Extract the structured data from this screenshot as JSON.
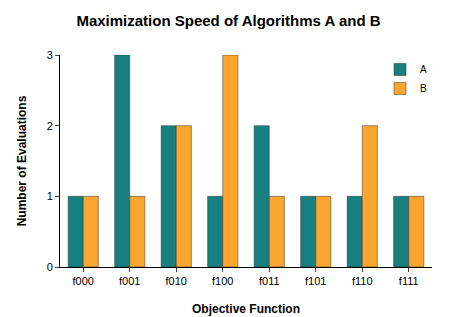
{
  "chart_data": {
    "type": "bar",
    "title": "Maximization Speed of Algorithms A and B",
    "x_label": "Objective Function",
    "y_label": "Number of Evaluations",
    "categories": [
      "f000",
      "f001",
      "f010",
      "f100",
      "f011",
      "f101",
      "f110",
      "f111"
    ],
    "series": [
      {
        "name": "A",
        "color": "#168080",
        "values": [
          1,
          3,
          2,
          1,
          2,
          1,
          1,
          1
        ]
      },
      {
        "name": "B",
        "color": "#f9a52f",
        "values": [
          1,
          1,
          2,
          3,
          1,
          1,
          2,
          1
        ]
      }
    ],
    "ylim": [
      0,
      3
    ],
    "yticks": [
      0,
      1,
      2,
      3
    ],
    "grid": false,
    "legend": "top right"
  }
}
